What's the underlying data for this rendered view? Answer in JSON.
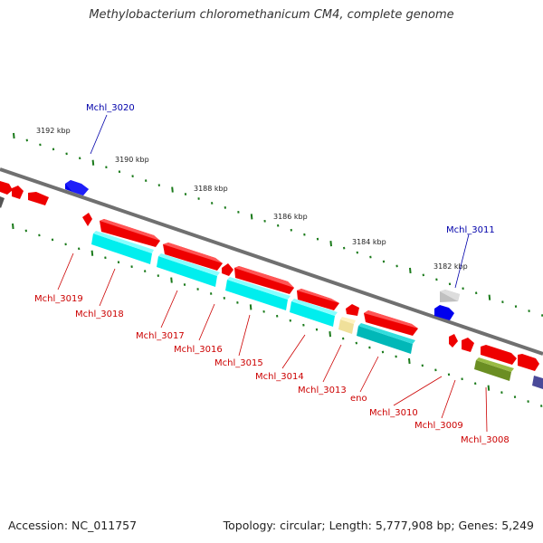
{
  "title": "Methylobacterium chloromethanicum CM4, complete genome",
  "footer": {
    "accession": "Accession: NC_011757",
    "topology": "Topology: circular; Length: 5,777,908 bp; Genes: 5,249"
  },
  "colors": {
    "backbone": "#808080",
    "forward_gene": "#ff0000",
    "reverse_gene": "#ff0000",
    "cds": "#00ffff",
    "tick": "#1a7a1a",
    "label_red": "#cc0000",
    "label_blue": "#0000aa"
  },
  "scale_labels": [
    "3192 kbp",
    "3190 kbp",
    "3188 kbp",
    "3186 kbp",
    "3184 kbp",
    "3182 kbp"
  ],
  "gene_labels_blue": [
    "Mchl_3020",
    "Mchl_3011"
  ],
  "gene_labels_red": [
    "Mchl_3019",
    "Mchl_3018",
    "Mchl_3017",
    "Mchl_3016",
    "Mchl_3015",
    "Mchl_3014",
    "Mchl_3013",
    "eno",
    "Mchl_3010",
    "Mchl_3009",
    "Mchl_3008"
  ]
}
